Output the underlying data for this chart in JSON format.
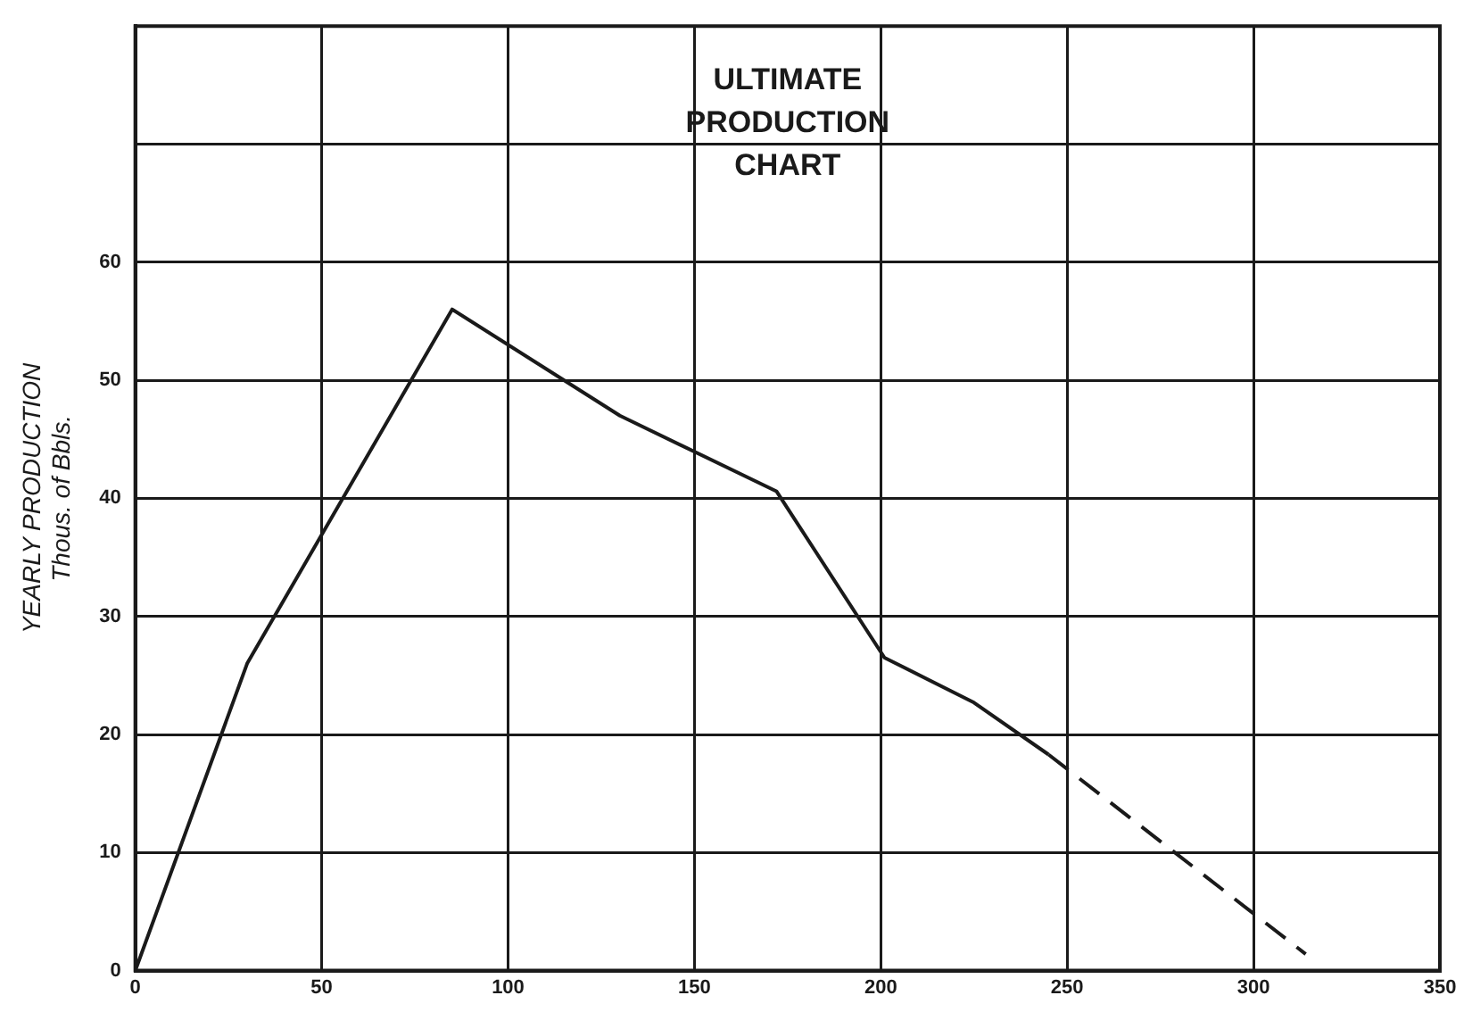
{
  "chart_data": {
    "type": "line",
    "title": "ULTIMATE\nPRODUCTION\nCHART",
    "ylabel": "YEARLY PRODUCTION\nThous. of Bbls.",
    "xlim": [
      0,
      350
    ],
    "xticks": [
      0,
      50,
      100,
      150,
      200,
      250,
      300,
      350
    ],
    "ylim": [
      0,
      80
    ],
    "yticks": [
      0,
      10,
      20,
      30,
      40,
      50,
      60,
      {
        "value": 70,
        "label": null
      }
    ],
    "grid": true,
    "legend": false,
    "marker": "none",
    "series": [
      {
        "color": "#1a1a1a",
        "line_style": "solid",
        "x": [
          0,
          30,
          85,
          130,
          172,
          201,
          225,
          245
        ],
        "values": [
          0,
          26,
          56,
          47,
          40.6,
          26.5,
          22.7,
          18.3
        ]
      },
      {
        "color": "#1a1a1a",
        "line_style": "dashed",
        "x": [
          245,
          314
        ],
        "values": [
          18.3,
          1.4
        ]
      }
    ]
  }
}
